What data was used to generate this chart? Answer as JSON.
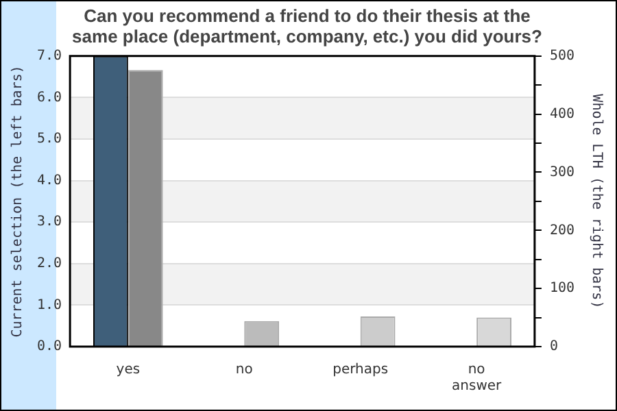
{
  "chart_data": {
    "type": "bar",
    "title": "Can you recommend a friend to do their thesis at the same place (department, company, etc.) you did yours?",
    "categories": [
      "yes",
      "no",
      "perhaps",
      "no answer"
    ],
    "series": [
      {
        "color": "#3f5f7a",
        "values": [
          7,
          0,
          0,
          0
        ]
      },
      {
        "colors": [
          "#888888",
          "#bbbbbb",
          "#cccccc",
          "#d8d8d8"
        ],
        "values": [
          476,
          44,
          52,
          50
        ],
        "axis": "y2"
      }
    ],
    "ylabel": "Current selection (the left bars)",
    "y2label": "Whole LTH (the right bars)",
    "ylim": [
      0,
      7
    ],
    "yticks": [
      {
        "value": 0,
        "label": "0.0"
      },
      {
        "value": 1,
        "label": "1.0"
      },
      {
        "value": 2,
        "label": "2.0"
      },
      {
        "value": 3,
        "label": "3.0"
      },
      {
        "value": 4,
        "label": "4.0"
      },
      {
        "value": 5,
        "label": "5.0"
      },
      {
        "value": 6,
        "label": "6.0"
      },
      {
        "value": 7,
        "label": "7.0"
      }
    ],
    "y2lim": [
      0,
      500
    ],
    "y2ticks": [
      0,
      {
        "value": 50,
        "label": null
      },
      100,
      {
        "value": 150,
        "label": null
      },
      200,
      {
        "value": 250,
        "label": null
      },
      300,
      {
        "value": 350,
        "label": null
      },
      400,
      {
        "value": 450,
        "label": null
      },
      500
    ],
    "bands": [
      {
        "axis": "y",
        "from": 1,
        "to": 2,
        "color": "#f2f2f2"
      },
      {
        "axis": "y",
        "from": 3,
        "to": 4,
        "color": "#f2f2f2"
      },
      {
        "axis": "y",
        "from": 5,
        "to": 6,
        "color": "#f2f2f2"
      }
    ],
    "grid": "y",
    "legend": false
  }
}
